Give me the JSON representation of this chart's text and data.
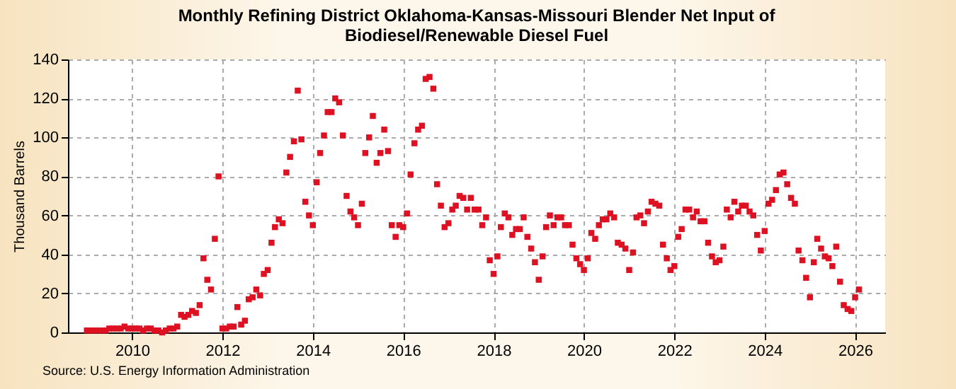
{
  "chart_data": {
    "type": "scatter",
    "title": "Monthly Refining District Oklahoma-Kansas-Missouri Blender Net Input of Biodiesel/Renewable Diesel Fuel",
    "ylabel": "Thousand Barrels",
    "annotations": [
      "Source: U.S. Energy Information Administration"
    ],
    "series": [
      {
        "color": "#dd1122",
        "x": [
          "2009-01",
          "2009-02",
          "2009-03",
          "2009-04",
          "2009-05",
          "2009-06",
          "2009-07",
          "2009-08",
          "2009-09",
          "2009-10",
          "2009-11",
          "2009-12",
          "2010-01",
          "2010-02",
          "2010-03",
          "2010-04",
          "2010-05",
          "2010-06",
          "2010-07",
          "2010-08",
          "2010-09",
          "2010-10",
          "2010-11",
          "2010-12",
          "2011-01",
          "2011-02",
          "2011-03",
          "2011-04",
          "2011-05",
          "2011-06",
          "2011-07",
          "2011-08",
          "2011-09",
          "2011-10",
          "2011-11",
          "2011-12",
          "2012-01",
          "2012-02",
          "2012-03",
          "2012-04",
          "2012-05",
          "2012-06",
          "2012-07",
          "2012-08",
          "2012-09",
          "2012-10",
          "2012-11",
          "2012-12",
          "2013-01",
          "2013-02",
          "2013-03",
          "2013-04",
          "2013-05",
          "2013-06",
          "2013-07",
          "2013-08",
          "2013-09",
          "2013-10",
          "2013-11",
          "2013-12",
          "2014-01",
          "2014-02",
          "2014-03",
          "2014-04",
          "2014-05",
          "2014-06",
          "2014-07",
          "2014-08",
          "2014-09",
          "2014-10",
          "2014-11",
          "2014-12",
          "2015-01",
          "2015-02",
          "2015-03",
          "2015-04",
          "2015-05",
          "2015-06",
          "2015-07",
          "2015-08",
          "2015-09",
          "2015-10",
          "2015-11",
          "2015-12",
          "2016-01",
          "2016-02",
          "2016-03",
          "2016-04",
          "2016-05",
          "2016-06",
          "2016-07",
          "2016-08",
          "2016-09",
          "2016-10",
          "2016-11",
          "2016-12",
          "2017-01",
          "2017-02",
          "2017-03",
          "2017-04",
          "2017-05",
          "2017-06",
          "2017-07",
          "2017-08",
          "2017-09",
          "2017-10",
          "2017-11",
          "2017-12",
          "2018-01",
          "2018-02",
          "2018-03",
          "2018-04",
          "2018-05",
          "2018-06",
          "2018-07",
          "2018-08",
          "2018-09",
          "2018-10",
          "2018-11",
          "2018-12",
          "2019-01",
          "2019-02",
          "2019-03",
          "2019-04",
          "2019-05",
          "2019-06",
          "2019-07",
          "2019-08",
          "2019-09",
          "2019-10",
          "2019-11",
          "2019-12",
          "2020-01",
          "2020-02",
          "2020-03",
          "2020-04",
          "2020-05",
          "2020-06",
          "2020-07",
          "2020-08",
          "2020-09",
          "2020-10",
          "2020-11",
          "2020-12",
          "2021-01",
          "2021-02",
          "2021-03",
          "2021-04",
          "2021-05",
          "2021-06",
          "2021-07",
          "2021-08",
          "2021-09",
          "2021-10",
          "2021-11",
          "2021-12",
          "2022-01",
          "2022-02",
          "2022-03",
          "2022-04",
          "2022-05",
          "2022-06",
          "2022-07",
          "2022-08",
          "2022-09",
          "2022-10",
          "2022-11",
          "2022-12",
          "2023-01",
          "2023-02",
          "2023-03",
          "2023-04",
          "2023-05",
          "2023-06",
          "2023-07",
          "2023-08",
          "2023-09",
          "2023-10",
          "2023-11",
          "2023-12",
          "2024-01",
          "2024-02",
          "2024-03",
          "2024-04",
          "2024-05",
          "2024-06",
          "2024-07",
          "2024-08",
          "2024-09",
          "2024-10",
          "2024-11",
          "2024-12",
          "2025-01",
          "2025-02",
          "2025-03",
          "2025-04",
          "2025-05",
          "2025-06",
          "2025-07",
          "2025-08",
          "2025-09",
          "2025-10",
          "2025-11",
          "2025-12",
          "2026-01",
          "2026-02"
        ],
        "values": [
          1,
          1,
          1,
          1,
          1,
          1,
          2,
          2,
          2,
          2,
          3,
          2,
          2,
          2,
          2,
          1,
          2,
          2,
          1,
          1,
          0,
          1,
          2,
          2,
          3,
          9,
          8,
          9,
          11,
          10,
          14,
          38,
          27,
          22,
          48,
          80,
          2,
          2,
          3,
          3,
          13,
          4,
          6,
          17,
          18,
          22,
          19,
          30,
          32,
          46,
          54,
          58,
          56,
          82,
          90,
          98,
          124,
          99,
          67,
          60,
          55,
          77,
          92,
          101,
          113,
          113,
          120,
          118,
          101,
          70,
          62,
          59,
          55,
          66,
          92,
          100,
          111,
          87,
          92,
          104,
          93,
          55,
          49,
          55,
          54,
          61,
          81,
          97,
          104,
          106,
          130,
          131,
          125,
          76,
          65,
          54,
          56,
          63,
          65,
          70,
          69,
          63,
          69,
          63,
          63,
          55,
          59,
          37,
          30,
          39,
          54,
          61,
          59,
          50,
          53,
          53,
          59,
          49,
          43,
          36,
          27,
          39,
          54,
          60,
          55,
          59,
          59,
          55,
          55,
          45,
          38,
          35,
          32,
          38,
          51,
          48,
          55,
          58,
          58,
          61,
          59,
          46,
          45,
          43,
          32,
          41,
          59,
          60,
          56,
          62,
          67,
          66,
          65,
          45,
          38,
          32,
          34,
          49,
          53,
          63,
          63,
          59,
          62,
          57,
          57,
          46,
          39,
          36,
          37,
          44,
          63,
          59,
          67,
          62,
          65,
          65,
          62,
          60,
          50,
          42,
          52,
          66,
          68,
          73,
          81,
          82,
          76,
          69,
          66,
          42,
          37,
          28,
          18,
          36,
          48,
          43,
          39,
          38,
          34,
          44,
          26,
          14,
          12,
          11,
          18,
          22
        ]
      }
    ],
    "xlim": [
      "2008-08",
      "2026-09"
    ],
    "xticks": [
      "2010",
      "2012",
      "2014",
      "2016",
      "2018",
      "2020",
      "2022",
      "2024",
      "2026"
    ],
    "ylim": [
      0,
      140
    ],
    "yticks": [
      0,
      20,
      40,
      60,
      80,
      100,
      120,
      140
    ],
    "grid": true,
    "marker": "square",
    "legend": false
  }
}
